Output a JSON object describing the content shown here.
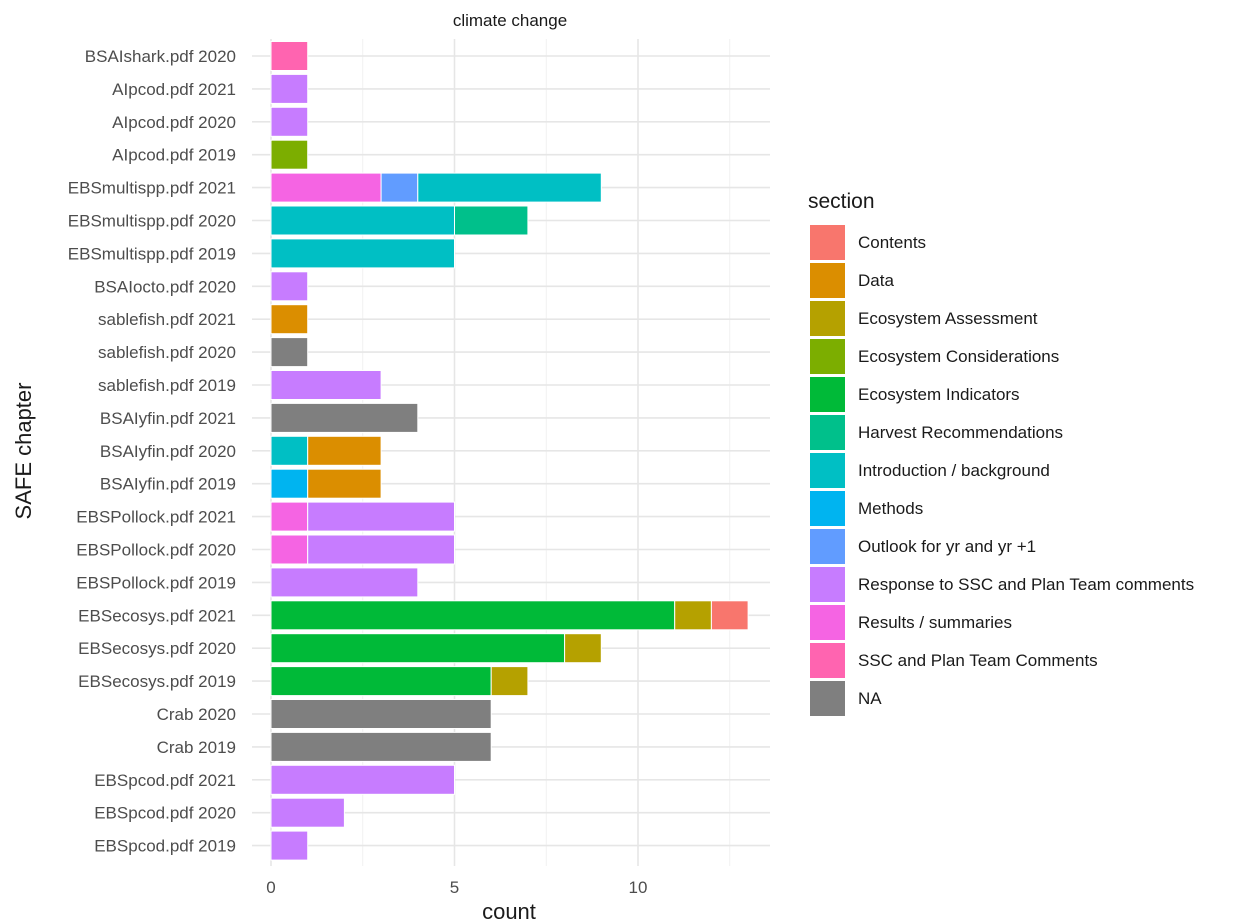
{
  "chart_data": {
    "type": "bar",
    "orientation": "horizontal",
    "stacked": true,
    "title": "climate change",
    "xlabel": "count",
    "ylabel": "SAFE chapter",
    "xlim": [
      0,
      13.65
    ],
    "xticks": [
      0,
      5,
      10
    ],
    "grid": true,
    "legend_title": "section",
    "legend_position": "right",
    "colors": {
      "Contents": "#F8766D",
      "Data": "#DB8E00",
      "Ecosystem Assessment": "#AEA200",
      "Ecosystem Considerations": "#64B200",
      "Ecosystem Indicators": "#00BD5C",
      "Harvest Recommendations": "#00C1A7",
      "Introduction / background": "#00BADE",
      "Methods": "#00A6FF",
      "Outlook for yr and yr +1": "#B385FF",
      "Response to SSC and Plan Team comments": "#EF67EB",
      "Results / summaries": "#FF63B6",
      "SSC and Plan Team Comments": "#FF61C3",
      "NA": "#7F7F7F"
    },
    "legend": [
      {
        "label": "Contents",
        "color": "#F8766D"
      },
      {
        "label": "Data",
        "color": "#DB8E00"
      },
      {
        "label": "Ecosystem Assessment",
        "color": "#B5A100"
      },
      {
        "label": "Ecosystem Considerations",
        "color": "#7CAE00"
      },
      {
        "label": "Ecosystem Indicators",
        "color": "#00BA38"
      },
      {
        "label": "Harvest Recommendations",
        "color": "#00C08B"
      },
      {
        "label": "Introduction / background",
        "color": "#00BFC4"
      },
      {
        "label": "Methods",
        "color": "#00B4F0"
      },
      {
        "label": "Outlook for yr and yr +1",
        "color": "#619CFF"
      },
      {
        "label": "Response to SSC and Plan Team comments",
        "color": "#C77CFF"
      },
      {
        "label": "Results / summaries",
        "color": "#F564E3"
      },
      {
        "label": "SSC and Plan Team Comments",
        "color": "#FF64B0"
      },
      {
        "label": "NA",
        "color": "#7F7F7F"
      }
    ],
    "categories": [
      "BSAIshark.pdf 2020",
      "AIpcod.pdf 2021",
      "AIpcod.pdf 2020",
      "AIpcod.pdf 2019",
      "EBSmultispp.pdf 2021",
      "EBSmultispp.pdf 2020",
      "EBSmultispp.pdf 2019",
      "BSAIocto.pdf 2020",
      "sablefish.pdf 2021",
      "sablefish.pdf 2020",
      "sablefish.pdf 2019",
      "BSAIyfin.pdf 2021",
      "BSAIyfin.pdf 2020",
      "BSAIyfin.pdf 2019",
      "EBSPollock.pdf 2021",
      "EBSPollock.pdf 2020",
      "EBSPollock.pdf 2019",
      "EBSecosys.pdf 2021",
      "EBSecosys.pdf 2020",
      "EBSecosys.pdf 2019",
      "Crab 2020",
      "Crab 2019",
      "EBSpcod.pdf 2021",
      "EBSpcod.pdf 2020",
      "EBSpcod.pdf 2019"
    ],
    "bars": [
      [
        {
          "section": "SSC and Plan Team Comments",
          "value": 1
        }
      ],
      [
        {
          "section": "Response to SSC and Plan Team comments",
          "value": 1
        }
      ],
      [
        {
          "section": "Response to SSC and Plan Team comments",
          "value": 1
        }
      ],
      [
        {
          "section": "Ecosystem Considerations",
          "value": 1
        }
      ],
      [
        {
          "section": "Results / summaries",
          "value": 3
        },
        {
          "section": "Outlook for yr and yr +1",
          "value": 1
        },
        {
          "section": "Introduction / background",
          "value": 5
        }
      ],
      [
        {
          "section": "Introduction / background",
          "value": 5
        },
        {
          "section": "Harvest Recommendations",
          "value": 2
        }
      ],
      [
        {
          "section": "Introduction / background",
          "value": 5
        }
      ],
      [
        {
          "section": "Response to SSC and Plan Team comments",
          "value": 1
        }
      ],
      [
        {
          "section": "Data",
          "value": 1
        }
      ],
      [
        {
          "section": "NA",
          "value": 1
        }
      ],
      [
        {
          "section": "Response to SSC and Plan Team comments",
          "value": 3
        }
      ],
      [
        {
          "section": "NA",
          "value": 4
        }
      ],
      [
        {
          "section": "Introduction / background",
          "value": 1
        },
        {
          "section": "Data",
          "value": 2
        }
      ],
      [
        {
          "section": "Methods",
          "value": 1
        },
        {
          "section": "Data",
          "value": 2
        }
      ],
      [
        {
          "section": "Results / summaries",
          "value": 1
        },
        {
          "section": "Response to SSC and Plan Team comments",
          "value": 4
        }
      ],
      [
        {
          "section": "Results / summaries",
          "value": 1
        },
        {
          "section": "Response to SSC and Plan Team comments",
          "value": 4
        }
      ],
      [
        {
          "section": "Response to SSC and Plan Team comments",
          "value": 4
        }
      ],
      [
        {
          "section": "Ecosystem Indicators",
          "value": 11
        },
        {
          "section": "Ecosystem Assessment",
          "value": 1
        },
        {
          "section": "Contents",
          "value": 1
        }
      ],
      [
        {
          "section": "Ecosystem Indicators",
          "value": 8
        },
        {
          "section": "Ecosystem Assessment",
          "value": 1
        }
      ],
      [
        {
          "section": "Ecosystem Indicators",
          "value": 6
        },
        {
          "section": "Ecosystem Assessment",
          "value": 1
        }
      ],
      [
        {
          "section": "NA",
          "value": 6
        }
      ],
      [
        {
          "section": "NA",
          "value": 6
        }
      ],
      [
        {
          "section": "Response to SSC and Plan Team comments",
          "value": 5
        }
      ],
      [
        {
          "section": "Response to SSC and Plan Team comments",
          "value": 2
        }
      ],
      [
        {
          "section": "Response to SSC and Plan Team comments",
          "value": 1
        }
      ]
    ]
  }
}
